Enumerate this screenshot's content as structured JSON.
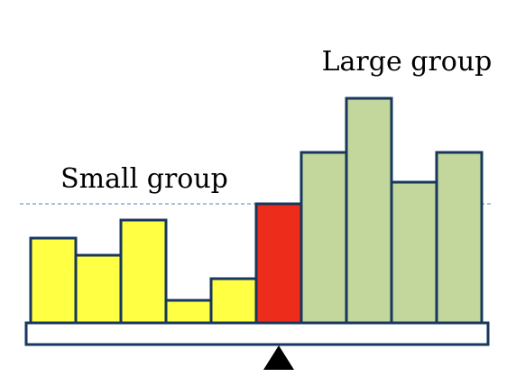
{
  "labels": {
    "large_group": "Large group",
    "small_group": "Small group"
  },
  "bars": {
    "small_heights": [
      94,
      75,
      114,
      25,
      49
    ],
    "pivot_height": 132,
    "large_heights": [
      189,
      249,
      156,
      189
    ],
    "threshold_height": 132
  },
  "colors": {
    "small_fill": "#ffff44",
    "pivot_fill": "#ee2c1c",
    "large_fill": "#c3d69b",
    "bar_stroke": "#17375e",
    "beam_stroke": "#17375e",
    "threshold_line": "#4f81bd",
    "fulcrum": "#000000"
  }
}
